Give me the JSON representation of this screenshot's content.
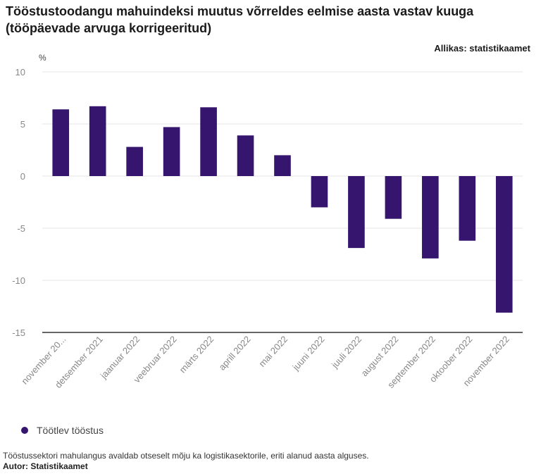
{
  "title": "Tööstustoodangu mahuindeksi muutus võrreldes eelmise aasta vastav kuuga (tööpäevade arvuga korrigeeritud)",
  "source": "Allikas: statistikaamet",
  "caption": "Tööstussektori mahulangus avaldab otseselt mõju ka logistikasektorile, eriti alanud aasta alguses.",
  "author_label": "Autor:",
  "author": "Statistikaamet",
  "colors": {
    "bar": "#35156e",
    "grid": "#e6e6e6",
    "axis": "#333333",
    "tick": "#888888"
  },
  "chart_data": {
    "type": "bar",
    "ylabel": "%",
    "ylim": [
      -15,
      10
    ],
    "yticks": [
      10,
      5,
      0,
      -5,
      -10,
      -15
    ],
    "grid": true,
    "legend_position": "bottom-left",
    "categories": [
      "november 20...",
      "detsember 2021",
      "jaanuar 2022",
      "veebruar 2022",
      "märts 2022",
      "aprill 2022",
      "mai 2022",
      "juuni 2022",
      "juuli 2022",
      "august 2022",
      "september 2022",
      "oktoober 2022",
      "november 2022"
    ],
    "series": [
      {
        "name": "Töötlev tööstus",
        "values": [
          6.4,
          6.7,
          2.8,
          4.7,
          6.6,
          3.9,
          2.0,
          -3.0,
          -6.9,
          -4.1,
          -7.9,
          -6.2,
          -13.1
        ]
      }
    ]
  }
}
